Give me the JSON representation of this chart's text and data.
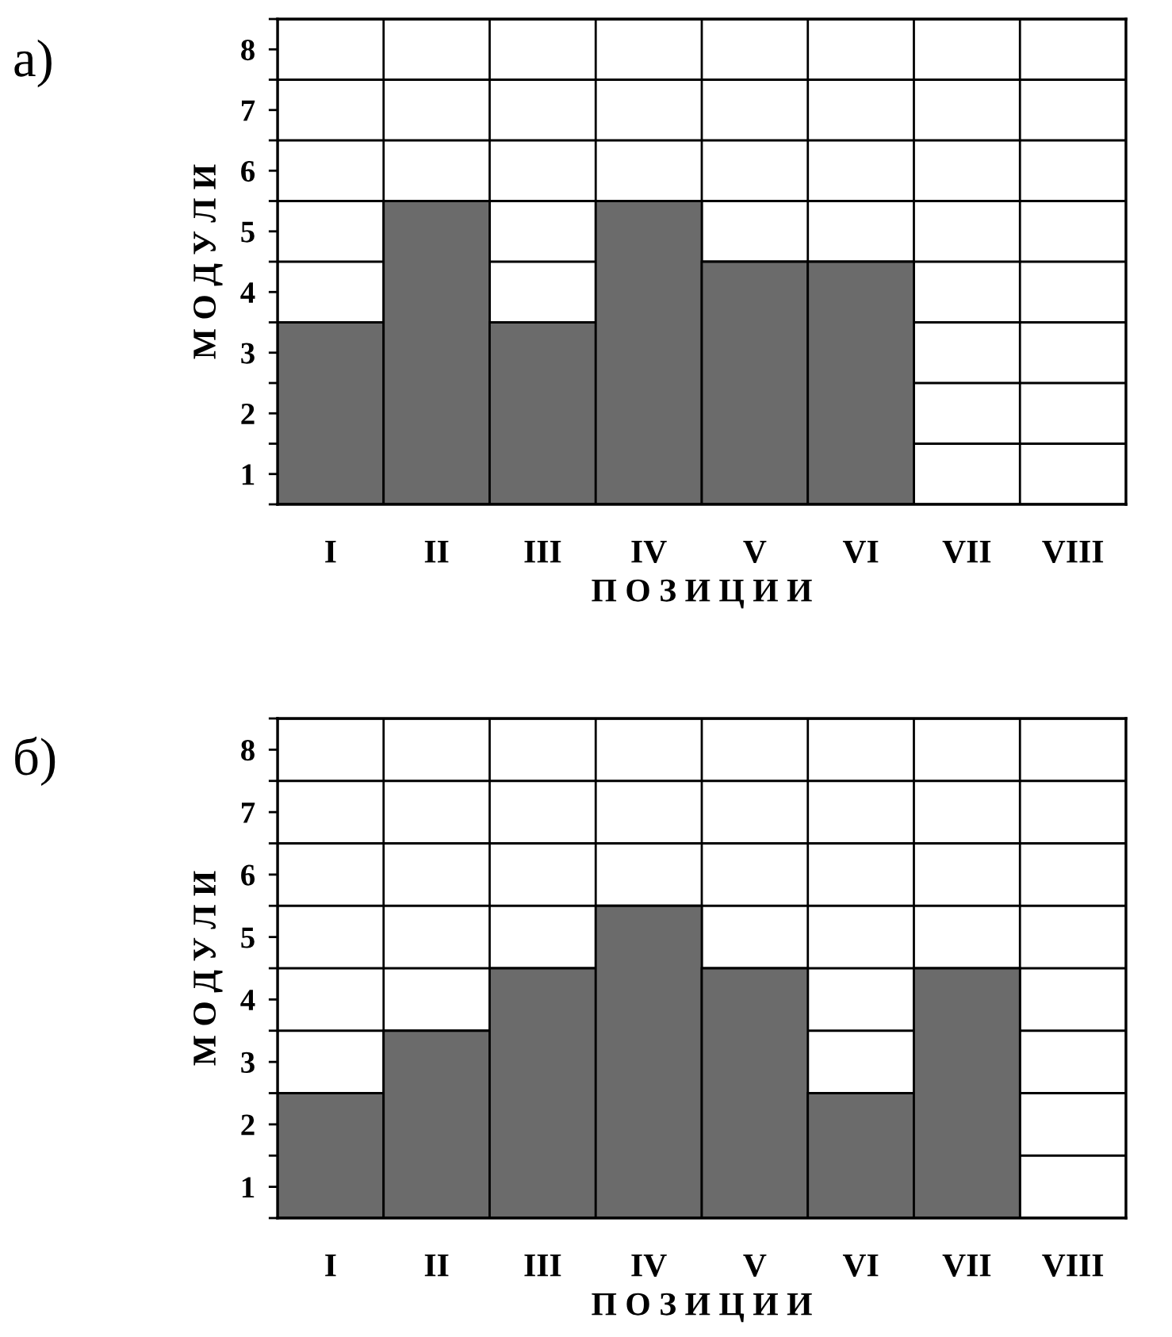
{
  "chart_data": [
    {
      "type": "bar",
      "title": "а)",
      "xlabel": "П О З И Ц И И",
      "ylabel": "М О Д У Л И",
      "categories": [
        "I",
        "II",
        "III",
        "IV",
        "V",
        "VI",
        "VII",
        "VIII"
      ],
      "values": [
        3,
        5,
        3,
        5,
        4,
        4,
        0,
        0
      ],
      "base": [
        0.5,
        0.5,
        0.5,
        0.5,
        0.5,
        0.5,
        null,
        null
      ],
      "color": "#6b6b6b",
      "ylim": [
        0.5,
        8.5
      ],
      "yticks": [
        {
          "value": 0.5,
          "label": null
        },
        1,
        {
          "value": 1.5,
          "label": null
        },
        2,
        {
          "value": 2.5,
          "label": null
        },
        3,
        {
          "value": 3.5,
          "label": null
        },
        4,
        {
          "value": 4.5,
          "label": null
        },
        5,
        {
          "value": 5.5,
          "label": null
        },
        6,
        {
          "value": 6.5,
          "label": null
        },
        7,
        {
          "value": 7.5,
          "label": null
        },
        8,
        {
          "value": 8.5,
          "label": null
        }
      ],
      "grid": true
    },
    {
      "type": "bar",
      "title": "б)",
      "xlabel": "П О З И Ц И И",
      "ylabel": "М О Д У Л И",
      "categories": [
        "I",
        "II",
        "III",
        "IV",
        "V",
        "VI",
        "VII",
        "VIII"
      ],
      "values": [
        2,
        3,
        4,
        5,
        4,
        2,
        4,
        0
      ],
      "base": [
        0.5,
        0.5,
        0.5,
        0.5,
        0.5,
        0.5,
        0.5,
        null
      ],
      "color": "#6b6b6b",
      "ylim": [
        0.5,
        8.5
      ],
      "yticks": [
        {
          "value": 0.5,
          "label": null
        },
        1,
        {
          "value": 1.5,
          "label": null
        },
        2,
        {
          "value": 2.5,
          "label": null
        },
        3,
        {
          "value": 3.5,
          "label": null
        },
        4,
        {
          "value": 4.5,
          "label": null
        },
        5,
        {
          "value": 5.5,
          "label": null
        },
        6,
        {
          "value": 6.5,
          "label": null
        },
        7,
        {
          "value": 7.5,
          "label": null
        },
        8,
        {
          "value": 8.5,
          "label": null
        }
      ],
      "grid": true
    }
  ]
}
